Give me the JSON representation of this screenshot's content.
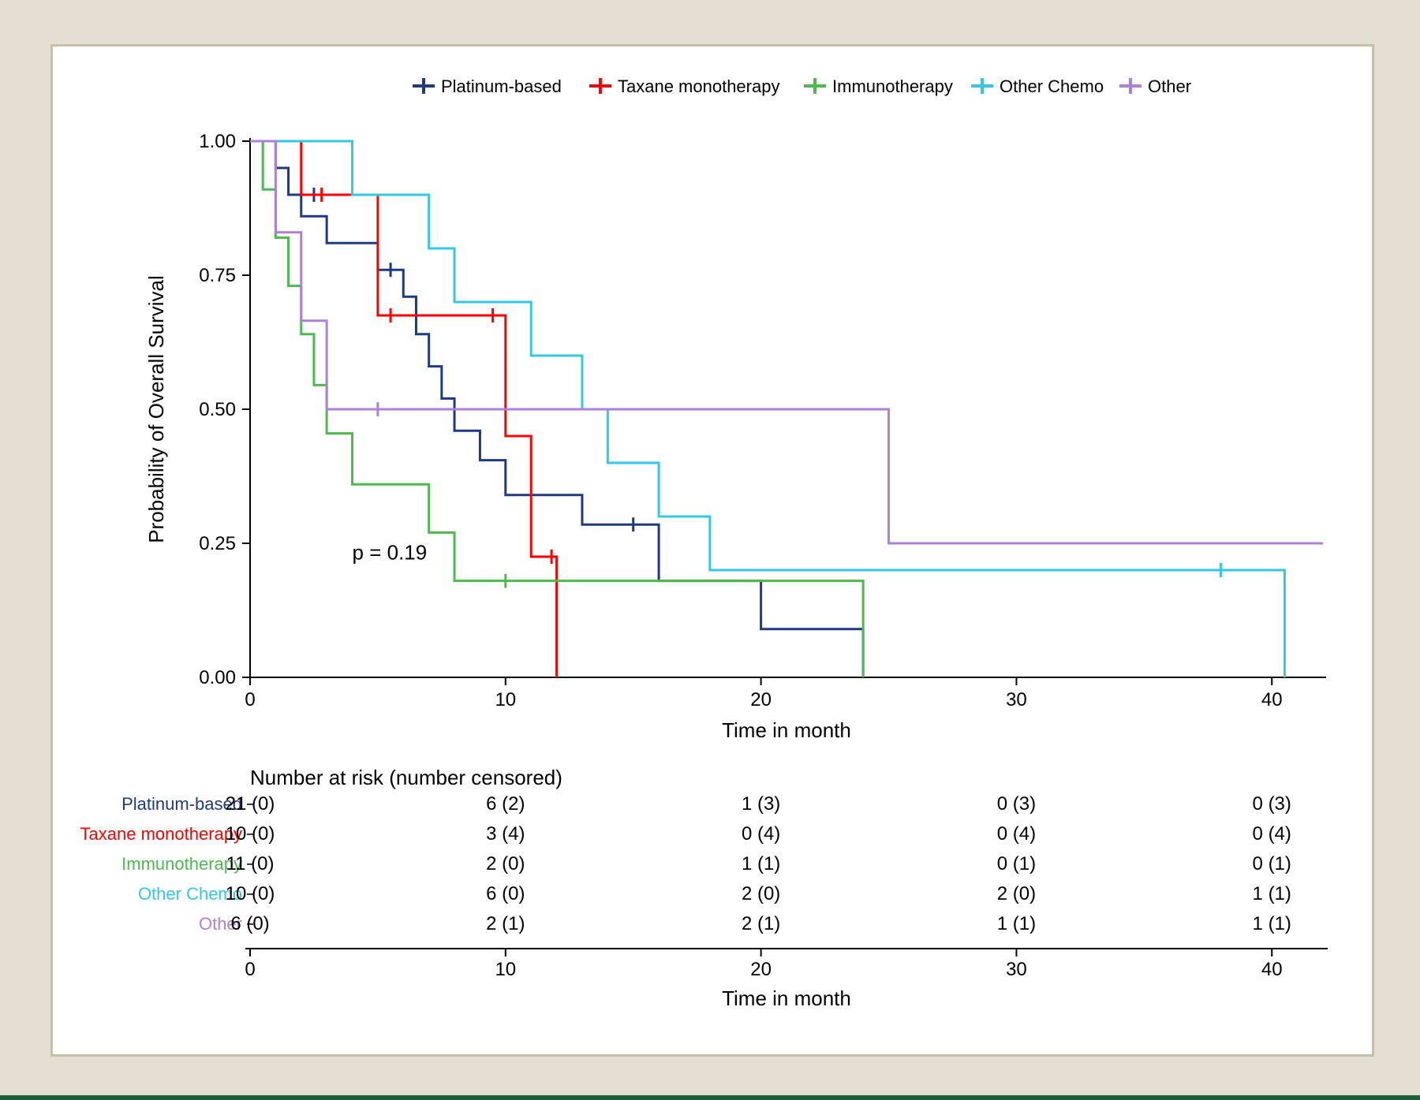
{
  "chart": {
    "type": "kaplan-meier-survival",
    "ylabel": "Probability of Overall Survival",
    "xlabel": "Time in month",
    "p_value_text": "p = 0.19",
    "xlim": [
      0,
      42
    ],
    "ylim": [
      0,
      1.0
    ],
    "xticks": [
      0,
      10,
      20,
      30,
      40
    ],
    "yticks": [
      0.0,
      0.25,
      0.5,
      0.75,
      1.0
    ],
    "ytick_labels": [
      "0.00",
      "0.25",
      "0.50",
      "0.75",
      "1.00"
    ],
    "axis_color": "#000000",
    "text_color": "#000000",
    "line_width": 3,
    "label_fontsize": 26,
    "tick_fontsize": 24,
    "legend_fontsize": 22,
    "title_fontsize": 26,
    "series": [
      {
        "name": "Platinum-based",
        "color": "#1e3a80",
        "steps": [
          [
            0,
            1.0
          ],
          [
            1,
            1.0
          ],
          [
            1,
            0.95
          ],
          [
            1.5,
            0.95
          ],
          [
            1.5,
            0.9
          ],
          [
            2,
            0.9
          ],
          [
            2,
            0.86
          ],
          [
            3,
            0.86
          ],
          [
            3,
            0.81
          ],
          [
            5,
            0.81
          ],
          [
            5,
            0.76
          ],
          [
            6,
            0.76
          ],
          [
            6,
            0.71
          ],
          [
            6.5,
            0.71
          ],
          [
            6.5,
            0.64
          ],
          [
            7,
            0.64
          ],
          [
            7,
            0.58
          ],
          [
            7.5,
            0.58
          ],
          [
            7.5,
            0.52
          ],
          [
            8,
            0.52
          ],
          [
            8,
            0.46
          ],
          [
            9,
            0.46
          ],
          [
            9,
            0.405
          ],
          [
            10,
            0.405
          ],
          [
            10,
            0.34
          ],
          [
            13,
            0.34
          ],
          [
            13,
            0.285
          ],
          [
            15,
            0.285
          ],
          [
            16,
            0.285
          ],
          [
            16,
            0.18
          ],
          [
            20,
            0.18
          ],
          [
            20,
            0.09
          ],
          [
            24,
            0.09
          ],
          [
            24,
            0.0
          ]
        ],
        "censors": [
          [
            2.5,
            0.9
          ],
          [
            5.5,
            0.76
          ],
          [
            15,
            0.285
          ]
        ]
      },
      {
        "name": "Taxane monotherapy",
        "color": "#ff0000",
        "steps": [
          [
            0,
            1.0
          ],
          [
            2,
            1.0
          ],
          [
            2,
            0.9
          ],
          [
            5,
            0.9
          ],
          [
            5,
            0.675
          ],
          [
            10,
            0.675
          ],
          [
            10,
            0.45
          ],
          [
            11,
            0.45
          ],
          [
            11,
            0.225
          ],
          [
            12,
            0.225
          ],
          [
            12,
            0.0
          ]
        ],
        "censors": [
          [
            2.8,
            0.9
          ],
          [
            5.5,
            0.675
          ],
          [
            9.5,
            0.675
          ],
          [
            11.8,
            0.225
          ]
        ]
      },
      {
        "name": "Immunotherapy",
        "color": "#4eb94e",
        "steps": [
          [
            0,
            1.0
          ],
          [
            0.5,
            1.0
          ],
          [
            0.5,
            0.91
          ],
          [
            1,
            0.91
          ],
          [
            1,
            0.82
          ],
          [
            1.5,
            0.82
          ],
          [
            1.5,
            0.73
          ],
          [
            2,
            0.73
          ],
          [
            2,
            0.64
          ],
          [
            2.5,
            0.64
          ],
          [
            2.5,
            0.545
          ],
          [
            3,
            0.545
          ],
          [
            3,
            0.455
          ],
          [
            4,
            0.455
          ],
          [
            4,
            0.36
          ],
          [
            7,
            0.36
          ],
          [
            7,
            0.27
          ],
          [
            8,
            0.27
          ],
          [
            8,
            0.18
          ],
          [
            14,
            0.18
          ],
          [
            24,
            0.18
          ],
          [
            24,
            0.0
          ]
        ],
        "censors": [
          [
            10,
            0.18
          ]
        ]
      },
      {
        "name": "Other Chemo",
        "color": "#33c9e2",
        "steps": [
          [
            0,
            1.0
          ],
          [
            4,
            1.0
          ],
          [
            4,
            0.9
          ],
          [
            7,
            0.9
          ],
          [
            7,
            0.8
          ],
          [
            8,
            0.8
          ],
          [
            8,
            0.7
          ],
          [
            11,
            0.7
          ],
          [
            11,
            0.6
          ],
          [
            13,
            0.6
          ],
          [
            13,
            0.5
          ],
          [
            14,
            0.5
          ],
          [
            14,
            0.4
          ],
          [
            16,
            0.4
          ],
          [
            16,
            0.3
          ],
          [
            18,
            0.3
          ],
          [
            18,
            0.2
          ],
          [
            40,
            0.2
          ],
          [
            40.5,
            0.2
          ],
          [
            40.5,
            0.0
          ]
        ],
        "censors": [
          [
            38,
            0.2
          ]
        ]
      },
      {
        "name": "Other",
        "color": "#b080d8",
        "steps": [
          [
            0,
            1.0
          ],
          [
            1,
            1.0
          ],
          [
            1,
            0.83
          ],
          [
            2,
            0.83
          ],
          [
            2,
            0.665
          ],
          [
            3,
            0.665
          ],
          [
            3,
            0.5
          ],
          [
            25,
            0.5
          ],
          [
            25,
            0.25
          ],
          [
            42,
            0.25
          ]
        ],
        "censors": [
          [
            5,
            0.5
          ]
        ]
      }
    ]
  },
  "risk_table": {
    "title": "Number at risk (number censored)",
    "xlabel": "Time in month",
    "times": [
      0,
      10,
      20,
      30,
      40
    ],
    "rows": [
      {
        "label": "Platinum-based",
        "color": "#1e3a80",
        "values": [
          "21 (0)",
          "6 (2)",
          "1 (3)",
          "0 (3)",
          "0 (3)"
        ]
      },
      {
        "label": "Taxane monotherapy",
        "color": "#ff0000",
        "values": [
          "10 (0)",
          "3 (4)",
          "0 (4)",
          "0 (4)",
          "0 (4)"
        ]
      },
      {
        "label": "Immunotherapy",
        "color": "#4eb94e",
        "values": [
          "11 (0)",
          "2 (0)",
          "1 (1)",
          "0 (1)",
          "0 (1)"
        ]
      },
      {
        "label": "Other Chemo",
        "color": "#33c9e2",
        "values": [
          "10 (0)",
          "6 (0)",
          "2 (0)",
          "2 (0)",
          "1 (1)"
        ]
      },
      {
        "label": "Other",
        "color": "#b080d8",
        "values": [
          "6 (0)",
          "2 (1)",
          "2 (1)",
          "1 (1)",
          "1 (1)"
        ]
      }
    ]
  }
}
